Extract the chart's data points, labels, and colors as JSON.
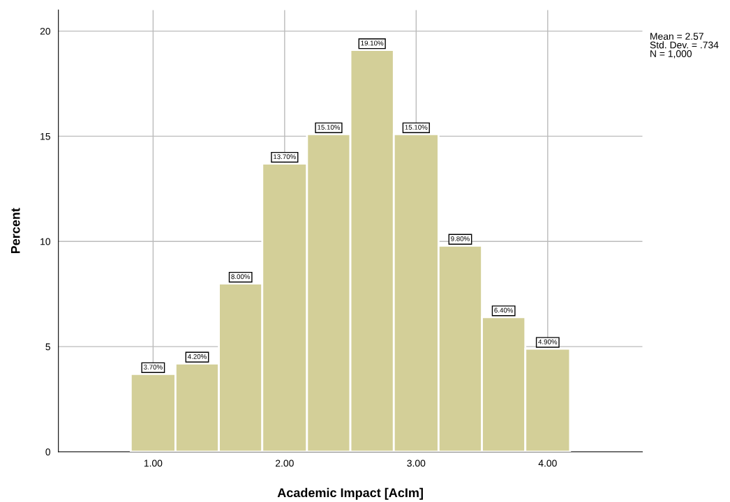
{
  "chart_data": {
    "type": "histogram",
    "xlabel": "Academic Impact [AcIm]",
    "ylabel": "Percent",
    "bins": [
      0.83,
      1.17,
      1.5,
      1.83,
      2.17,
      2.5,
      2.83,
      3.17,
      3.5,
      3.83,
      4.17
    ],
    "values": [
      3.7,
      4.2,
      8.0,
      13.7,
      15.1,
      19.1,
      15.1,
      9.8,
      6.4,
      4.9
    ],
    "value_labels": [
      "3.70%",
      "4.20%",
      "8.00%",
      "13.70%",
      "15.10%",
      "19.10%",
      "15.10%",
      "9.80%",
      "6.40%",
      "4.90%"
    ],
    "color": "#d3cf98",
    "xlim": [
      0.28,
      4.72
    ],
    "ylim": [
      0,
      21
    ],
    "xticks": [
      {
        "value": 1,
        "label": "1.00"
      },
      {
        "value": 2,
        "label": "2.00"
      },
      {
        "value": 3,
        "label": "3.00"
      },
      {
        "value": 4,
        "label": "4.00"
      }
    ],
    "yticks": [
      0,
      5,
      10,
      15,
      20
    ],
    "grid": true,
    "legend": false,
    "annotations": [
      "Mean = 2.57\nStd. Dev. = .734\nN = 1,000"
    ]
  }
}
